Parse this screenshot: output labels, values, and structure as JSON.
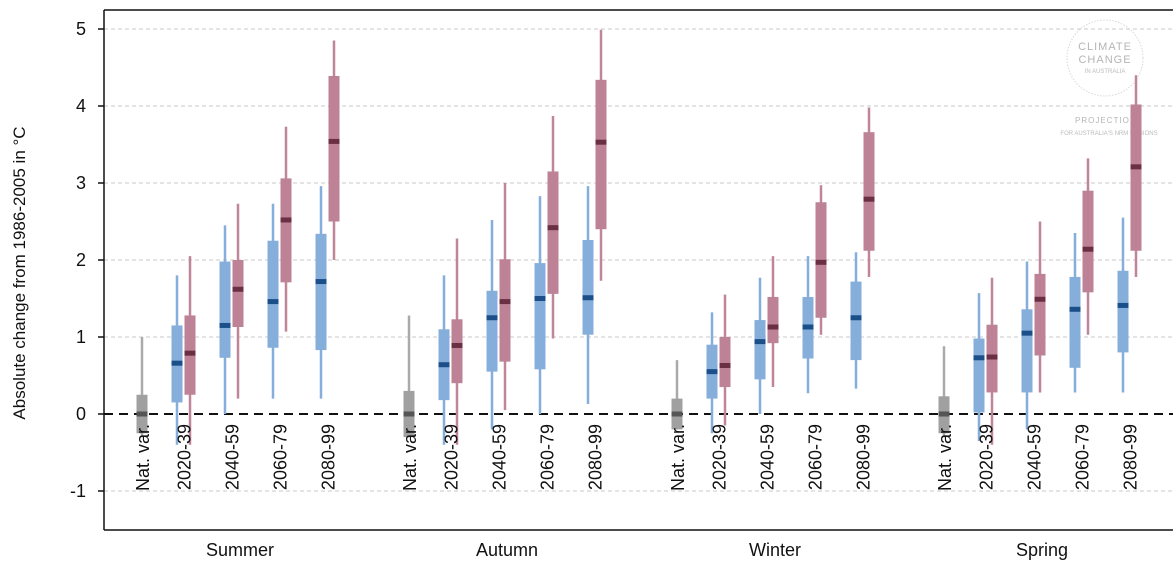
{
  "chart_data": {
    "type": "box",
    "ylabel": "Absolute change from 1986-2005 in  °C",
    "ylim": [
      -1.5,
      5.25
    ],
    "yticks": [
      -1,
      0,
      1,
      2,
      3,
      4,
      5
    ],
    "grid": "horizontal-dashed",
    "zero_line": "dashed",
    "groups": [
      "Summer",
      "Autumn",
      "Winter",
      "Spring"
    ],
    "categories": [
      "Nat. var.",
      "2020-39",
      "2040-59",
      "2060-79",
      "2080-99"
    ],
    "colors": {
      "natvar_box": "#a0a0a0",
      "natvar_whisker": "#aaaaaa",
      "natvar_median": "#555555",
      "low_box": "#86aedb",
      "low_whisker": "#86aedb",
      "low_median": "#1b4f8a",
      "high_box": "#bd8296",
      "high_whisker": "#bf8599",
      "high_median": "#6b2f44",
      "grid": "#c8c8c8"
    },
    "natvar": [
      {
        "group": "Summer",
        "whisker": [
          -0.3,
          1.0
        ],
        "box": [
          -0.25,
          0.25
        ],
        "median": 0.0
      },
      {
        "group": "Autumn",
        "whisker": [
          -0.3,
          1.28
        ],
        "box": [
          -0.3,
          0.3
        ],
        "median": 0.0
      },
      {
        "group": "Winter",
        "whisker": [
          -0.2,
          0.7
        ],
        "box": [
          -0.2,
          0.2
        ],
        "median": 0.0
      },
      {
        "group": "Spring",
        "whisker": [
          -0.3,
          0.88
        ],
        "box": [
          -0.25,
          0.23
        ],
        "median": 0.0
      }
    ],
    "series": [
      {
        "name": "",
        "kind": "low",
        "data": [
          {
            "group": "Summer",
            "period": "2020-39",
            "whisker": [
              -0.4,
              1.8
            ],
            "box": [
              0.15,
              1.15
            ],
            "median": 0.66
          },
          {
            "group": "Summer",
            "period": "2040-59",
            "whisker": [
              0.0,
              2.45
            ],
            "box": [
              0.73,
              1.98
            ],
            "median": 1.15
          },
          {
            "group": "Summer",
            "period": "2060-79",
            "whisker": [
              0.2,
              2.73
            ],
            "box": [
              0.86,
              2.25
            ],
            "median": 1.46
          },
          {
            "group": "Summer",
            "period": "2080-99",
            "whisker": [
              0.2,
              2.96
            ],
            "box": [
              0.83,
              2.34
            ],
            "median": 1.72
          },
          {
            "group": "Autumn",
            "period": "2020-39",
            "whisker": [
              -0.4,
              1.8
            ],
            "box": [
              0.18,
              1.1
            ],
            "median": 0.64
          },
          {
            "group": "Autumn",
            "period": "2040-59",
            "whisker": [
              -0.2,
              2.52
            ],
            "box": [
              0.55,
              1.6
            ],
            "median": 1.25
          },
          {
            "group": "Autumn",
            "period": "2060-79",
            "whisker": [
              0.0,
              2.83
            ],
            "box": [
              0.58,
              1.96
            ],
            "median": 1.5
          },
          {
            "group": "Autumn",
            "period": "2080-99",
            "whisker": [
              0.13,
              2.96
            ],
            "box": [
              1.03,
              2.26
            ],
            "median": 1.51
          },
          {
            "group": "Winter",
            "period": "2020-39",
            "whisker": [
              -0.25,
              1.32
            ],
            "box": [
              0.2,
              0.9
            ],
            "median": 0.55
          },
          {
            "group": "Winter",
            "period": "2040-59",
            "whisker": [
              0.0,
              1.77
            ],
            "box": [
              0.45,
              1.22
            ],
            "median": 0.94
          },
          {
            "group": "Winter",
            "period": "2060-79",
            "whisker": [
              0.27,
              2.05
            ],
            "box": [
              0.72,
              1.52
            ],
            "median": 1.13
          },
          {
            "group": "Winter",
            "period": "2080-99",
            "whisker": [
              0.33,
              2.1
            ],
            "box": [
              0.7,
              1.72
            ],
            "median": 1.25
          },
          {
            "group": "Spring",
            "period": "2020-39",
            "whisker": [
              -0.35,
              1.57
            ],
            "box": [
              0.02,
              0.98
            ],
            "median": 0.73
          },
          {
            "group": "Spring",
            "period": "2040-59",
            "whisker": [
              -0.2,
              1.98
            ],
            "box": [
              0.28,
              1.36
            ],
            "median": 1.05
          },
          {
            "group": "Spring",
            "period": "2060-79",
            "whisker": [
              0.28,
              2.35
            ],
            "box": [
              0.6,
              1.78
            ],
            "median": 1.36
          },
          {
            "group": "Spring",
            "period": "2080-99",
            "whisker": [
              0.28,
              2.55
            ],
            "box": [
              0.8,
              1.86
            ],
            "median": 1.41
          }
        ]
      },
      {
        "name": "",
        "kind": "high",
        "data": [
          {
            "group": "Summer",
            "period": "2020-39",
            "whisker": [
              -0.4,
              2.05
            ],
            "box": [
              0.25,
              1.28
            ],
            "median": 0.79
          },
          {
            "group": "Summer",
            "period": "2040-59",
            "whisker": [
              0.2,
              2.73
            ],
            "box": [
              1.13,
              2.0
            ],
            "median": 1.62
          },
          {
            "group": "Summer",
            "period": "2060-79",
            "whisker": [
              1.07,
              3.73
            ],
            "box": [
              1.71,
              3.06
            ],
            "median": 2.52
          },
          {
            "group": "Summer",
            "period": "2080-99",
            "whisker": [
              2.0,
              4.85
            ],
            "box": [
              2.5,
              4.39
            ],
            "median": 3.54
          },
          {
            "group": "Autumn",
            "period": "2020-39",
            "whisker": [
              -0.4,
              2.28
            ],
            "box": [
              0.4,
              1.23
            ],
            "median": 0.89
          },
          {
            "group": "Autumn",
            "period": "2040-59",
            "whisker": [
              0.05,
              3.0
            ],
            "box": [
              0.68,
              2.01
            ],
            "median": 1.46
          },
          {
            "group": "Autumn",
            "period": "2060-79",
            "whisker": [
              0.98,
              3.87
            ],
            "box": [
              1.56,
              3.15
            ],
            "median": 2.42
          },
          {
            "group": "Autumn",
            "period": "2080-99",
            "whisker": [
              1.73,
              4.99
            ],
            "box": [
              2.4,
              4.34
            ],
            "median": 3.53
          },
          {
            "group": "Winter",
            "period": "2020-39",
            "whisker": [
              -0.15,
              1.55
            ],
            "box": [
              0.35,
              1.0
            ],
            "median": 0.63
          },
          {
            "group": "Winter",
            "period": "2040-59",
            "whisker": [
              0.35,
              2.05
            ],
            "box": [
              0.92,
              1.52
            ],
            "median": 1.13
          },
          {
            "group": "Winter",
            "period": "2060-79",
            "whisker": [
              1.03,
              2.97
            ],
            "box": [
              1.25,
              2.75
            ],
            "median": 1.97
          },
          {
            "group": "Winter",
            "period": "2080-99",
            "whisker": [
              1.78,
              3.98
            ],
            "box": [
              2.12,
              3.66
            ],
            "median": 2.79
          },
          {
            "group": "Spring",
            "period": "2020-39",
            "whisker": [
              -0.4,
              1.77
            ],
            "box": [
              0.28,
              1.16
            ],
            "median": 0.74
          },
          {
            "group": "Spring",
            "period": "2040-59",
            "whisker": [
              0.28,
              2.5
            ],
            "box": [
              0.76,
              1.82
            ],
            "median": 1.49
          },
          {
            "group": "Spring",
            "period": "2060-79",
            "whisker": [
              1.03,
              3.32
            ],
            "box": [
              1.58,
              2.9
            ],
            "median": 2.14
          },
          {
            "group": "Spring",
            "period": "2080-99",
            "whisker": [
              1.78,
              4.4
            ],
            "box": [
              2.12,
              4.02
            ],
            "median": 3.21
          }
        ]
      }
    ]
  },
  "watermark": {
    "line1": "CLIMATE",
    "line2": "CHANGE",
    "line3": "IN AUSTRALIA",
    "line4": "PROJECTIONS",
    "line5": "FOR AUSTRALIA'S NRM REGIONS"
  }
}
